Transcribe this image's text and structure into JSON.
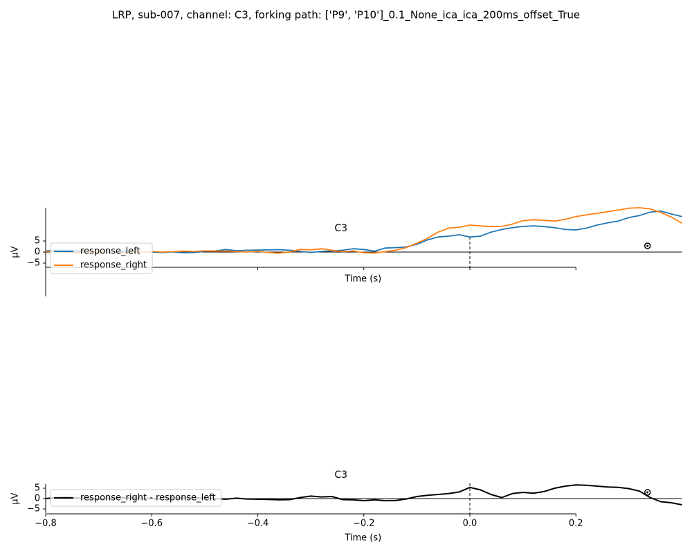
{
  "title": "LRP, sub-007, channel: C3, forking path: ['P9', 'P10']_0.1_None_ica_ica_200ms_offset_True",
  "chart_data": [
    {
      "type": "line",
      "title": "C3",
      "x_label": "Time (s)",
      "y_label": "µV",
      "x": [
        -0.8,
        -0.78,
        -0.76,
        -0.74,
        -0.72,
        -0.7,
        -0.68,
        -0.66,
        -0.64,
        -0.62,
        -0.6,
        -0.58,
        -0.56,
        -0.54,
        -0.52,
        -0.5,
        -0.48,
        -0.46,
        -0.44,
        -0.42,
        -0.4,
        -0.38,
        -0.36,
        -0.34,
        -0.32,
        -0.3,
        -0.28,
        -0.26,
        -0.24,
        -0.22,
        -0.2,
        -0.18,
        -0.16,
        -0.14,
        -0.12,
        -0.1,
        -0.08,
        -0.06,
        -0.04,
        -0.02,
        0,
        0.02,
        0.04,
        0.06,
        0.08,
        0.1,
        0.12,
        0.14,
        0.16,
        0.18,
        0.2,
        0.22,
        0.24,
        0.26,
        0.28,
        0.3,
        0.32,
        0.34,
        0.36,
        0.38,
        0.4
      ],
      "series": [
        {
          "name": "response_left",
          "color": "#1f77b4",
          "values": [
            0.5,
            0.8,
            0.8,
            0.6,
            0.3,
            0.2,
            0,
            0.3,
            0.5,
            0.2,
            0,
            -0.2,
            0.1,
            -0.3,
            -0.2,
            0.3,
            0.5,
            1.2,
            0.6,
            0.8,
            0.9,
            1,
            1.1,
            0.8,
            0.3,
            -0.2,
            0.3,
            0.5,
            0.8,
            1.5,
            1.2,
            0.4,
            1.8,
            2,
            2.3,
            3.5,
            5.5,
            6.8,
            7.2,
            7.8,
            6.8,
            7.2,
            9,
            10.2,
            11,
            11.6,
            11.8,
            11.5,
            11,
            10.2,
            10,
            10.8,
            12.2,
            13.2,
            14,
            15.6,
            16.5,
            18,
            18.5,
            17.2,
            16
          ]
        },
        {
          "name": "response_right",
          "color": "#ff7f0e",
          "values": [
            0.3,
            0.1,
            -0.2,
            -0.4,
            -0.1,
            0.2,
            0.4,
            -0.5,
            -0.2,
            0.1,
            0.3,
            0,
            0.2,
            0.4,
            0.3,
            0.6,
            0.4,
            0.5,
            0.2,
            0,
            0.3,
            -0.2,
            -0.5,
            0.1,
            1.2,
            1,
            1.5,
            0.8,
            0.2,
            0.5,
            -0.3,
            -0.4,
            0.2,
            0.8,
            2,
            4,
            6.2,
            9,
            10.8,
            11.2,
            12.2,
            11.8,
            11.5,
            11.6,
            12.6,
            14.2,
            14.6,
            14.3,
            14,
            14.8,
            16,
            16.8,
            17.5,
            18.2,
            19,
            19.8,
            20,
            19.5,
            17.8,
            15.8,
            13
          ]
        }
      ],
      "xlim": [
        -0.8,
        0.4
      ],
      "xticks": [
        -0.8,
        -0.6,
        -0.4,
        -0.2,
        0,
        0.2
      ],
      "show_xticklabels": false,
      "ylim": [
        -20,
        20
      ],
      "yticks": [
        {
          "value": -5,
          "label": "−5"
        },
        0,
        5
      ],
      "vline": 0,
      "hline": 0,
      "peak_marker": {
        "x": 0.335,
        "y": 2.8
      },
      "legend": "lower left"
    },
    {
      "type": "line",
      "title": "C3",
      "x_label": "Time (s)",
      "y_label": "µV",
      "x": [
        -0.8,
        -0.78,
        -0.76,
        -0.74,
        -0.72,
        -0.7,
        -0.68,
        -0.66,
        -0.64,
        -0.62,
        -0.6,
        -0.58,
        -0.56,
        -0.54,
        -0.52,
        -0.5,
        -0.48,
        -0.46,
        -0.44,
        -0.42,
        -0.4,
        -0.38,
        -0.36,
        -0.34,
        -0.32,
        -0.3,
        -0.28,
        -0.26,
        -0.24,
        -0.22,
        -0.2,
        -0.18,
        -0.16,
        -0.14,
        -0.12,
        -0.1,
        -0.08,
        -0.06,
        -0.04,
        -0.02,
        0,
        0.02,
        0.04,
        0.06,
        0.08,
        0.1,
        0.12,
        0.14,
        0.16,
        0.18,
        0.2,
        0.22,
        0.24,
        0.26,
        0.28,
        0.3,
        0.32,
        0.34,
        0.36,
        0.38,
        0.4
      ],
      "series": [
        {
          "name": "response_right - response_left",
          "color": "#000000",
          "values": [
            0,
            0.5,
            0.8,
            0.3,
            0,
            -0.3,
            0.2,
            0.5,
            0.6,
            0.2,
            0,
            -0.2,
            0.3,
            0.5,
            0.4,
            0.2,
            0,
            -0.3,
            0.2,
            -0.2,
            -0.3,
            -0.4,
            -0.6,
            -0.5,
            0.5,
            1.2,
            0.8,
            1,
            -0.5,
            -0.6,
            -1,
            -0.6,
            -1,
            -0.9,
            -0.2,
            1,
            1.6,
            2,
            2.4,
            3.2,
            5.4,
            4.2,
            2,
            0.5,
            2.4,
            3,
            2.6,
            3.4,
            5,
            6,
            6.6,
            6.4,
            6,
            5.6,
            5.4,
            4.8,
            3.6,
            0.5,
            -1.5,
            -2,
            -3
          ]
        }
      ],
      "xlim": [
        -0.8,
        0.4
      ],
      "xticks": [
        {
          "value": -0.8,
          "label": "−0.8"
        },
        {
          "value": -0.6,
          "label": "−0.6"
        },
        {
          "value": -0.4,
          "label": "−0.4"
        },
        {
          "value": -0.2,
          "label": "−0.2"
        },
        {
          "value": 0,
          "label": "0.0"
        },
        {
          "value": 0.2,
          "label": "0.2"
        }
      ],
      "show_xticklabels": true,
      "ylim": [
        -7,
        7
      ],
      "yticks": [
        {
          "value": -5,
          "label": "−5"
        },
        0,
        5
      ],
      "vline": 0,
      "hline": 0,
      "peak_marker": {
        "x": 0.335,
        "y": 3
      },
      "legend": "lower left"
    }
  ]
}
